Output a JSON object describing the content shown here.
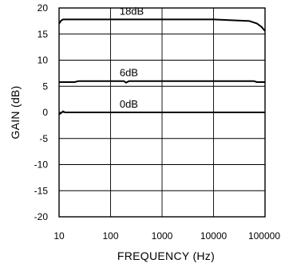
{
  "chart_data": {
    "type": "line",
    "xlabel": "FREQUENCY (Hz)",
    "ylabel": "GAIN (dB)",
    "xscale": "log",
    "xlim": [
      10,
      100000
    ],
    "ylim": [
      -20,
      20
    ],
    "x_ticks": [
      "10",
      "100",
      "1000",
      "10000",
      "100000"
    ],
    "y_ticks": [
      "20",
      "15",
      "10",
      "5",
      "0",
      "-5",
      "-10",
      "-15",
      "-20"
    ],
    "grid": true,
    "series": [
      {
        "name": "18dB",
        "x": [
          10,
          11,
          12,
          14,
          1000,
          10000,
          50000,
          70000,
          85000,
          100000
        ],
        "y": [
          17.0,
          17.6,
          17.8,
          17.8,
          17.8,
          17.8,
          17.5,
          17.0,
          16.4,
          15.6
        ]
      },
      {
        "name": "6dB",
        "x": [
          10,
          20,
          24,
          30,
          180,
          200,
          230,
          300,
          1000,
          10000,
          60000,
          70000,
          100000
        ],
        "y": [
          5.8,
          5.8,
          6.0,
          6.0,
          6.0,
          5.7,
          6.0,
          6.0,
          6.0,
          6.0,
          6.0,
          5.8,
          5.8
        ]
      },
      {
        "name": "0dB",
        "x": [
          10,
          12,
          13,
          15,
          1000,
          100000
        ],
        "y": [
          -0.4,
          0.2,
          0.0,
          0.0,
          0.0,
          0.0
        ]
      }
    ]
  }
}
